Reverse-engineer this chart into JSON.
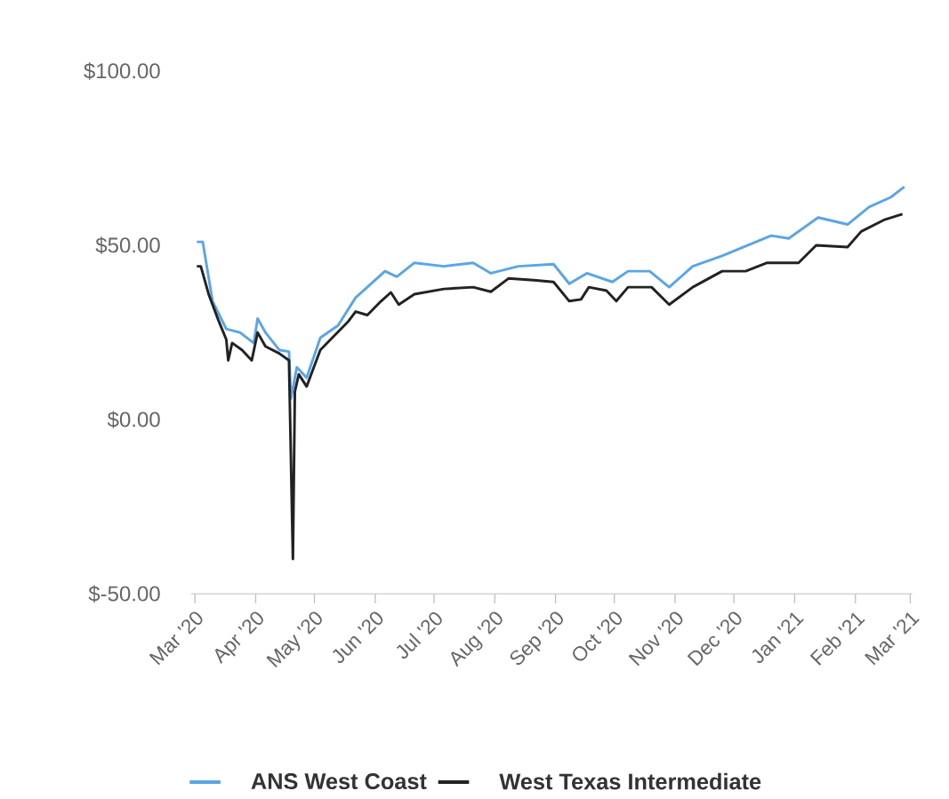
{
  "chart_data": {
    "type": "line",
    "xlim": [
      "2020-02-28",
      "2021-03-02"
    ],
    "ylim": [
      -50,
      100
    ],
    "xticks": [
      {
        "value": "2020-03-01",
        "label": "Mar '20"
      },
      {
        "value": "2020-04-01",
        "label": "Apr '20"
      },
      {
        "value": "2020-05-01",
        "label": "May '20"
      },
      {
        "value": "2020-06-01",
        "label": "Jun '20"
      },
      {
        "value": "2020-07-01",
        "label": "Jul '20"
      },
      {
        "value": "2020-08-01",
        "label": "Aug '20"
      },
      {
        "value": "2020-09-01",
        "label": "Sep '20"
      },
      {
        "value": "2020-10-01",
        "label": "Oct '20"
      },
      {
        "value": "2020-11-01",
        "label": "Nov '20"
      },
      {
        "value": "2020-12-01",
        "label": "Dec '20"
      },
      {
        "value": "2021-01-01",
        "label": "Jan '21"
      },
      {
        "value": "2021-02-01",
        "label": "Feb '21"
      },
      {
        "value": "2021-03-01",
        "label": "Mar '21"
      }
    ],
    "yticks": [
      {
        "value": -50,
        "label": "$-50.00"
      },
      {
        "value": 0,
        "label": "$0.00"
      },
      {
        "value": 50,
        "label": "$50.00"
      },
      {
        "value": 100,
        "label": "$100.00"
      }
    ],
    "legend": "bottom",
    "series": [
      {
        "name": "ANS West Coast",
        "color": "#5aa5e6",
        "x": [
          "2020-03-02",
          "2020-03-05",
          "2020-03-10",
          "2020-03-17",
          "2020-03-24",
          "2020-03-31",
          "2020-04-02",
          "2020-04-06",
          "2020-04-13",
          "2020-04-18",
          "2020-04-19",
          "2020-04-22",
          "2020-04-27",
          "2020-05-04",
          "2020-05-13",
          "2020-05-22",
          "2020-06-06",
          "2020-06-12",
          "2020-06-21",
          "2020-07-06",
          "2020-07-21",
          "2020-07-30",
          "2020-08-13",
          "2020-08-31",
          "2020-09-08",
          "2020-09-17",
          "2020-09-30",
          "2020-10-08",
          "2020-10-19",
          "2020-10-29",
          "2020-11-10",
          "2020-11-25",
          "2020-12-20",
          "2020-12-29",
          "2021-01-13",
          "2021-01-28",
          "2021-02-08",
          "2021-02-19",
          "2021-02-26"
        ],
        "values": [
          51,
          51,
          34,
          26,
          25,
          22,
          29,
          25,
          20,
          19.5,
          6,
          15,
          12,
          23.5,
          27,
          35,
          42.6,
          41,
          45,
          44,
          45,
          42,
          44,
          44.6,
          39,
          42,
          39.5,
          42.6,
          42.6,
          38,
          44,
          47,
          52.8,
          52,
          58,
          56,
          61,
          63.8,
          66.8
        ]
      },
      {
        "name": "West Texas Intermediate",
        "color": "#222222",
        "x": [
          "2020-03-02",
          "2020-03-04",
          "2020-03-08",
          "2020-03-13",
          "2020-03-17",
          "2020-03-18",
          "2020-03-20",
          "2020-03-25",
          "2020-03-30",
          "2020-04-02",
          "2020-04-06",
          "2020-04-13",
          "2020-04-18",
          "2020-04-20",
          "2020-04-21",
          "2020-04-23",
          "2020-04-27",
          "2020-04-30",
          "2020-05-04",
          "2020-05-11",
          "2020-05-18",
          "2020-05-22",
          "2020-05-28",
          "2020-06-04",
          "2020-06-09",
          "2020-06-13",
          "2020-06-21",
          "2020-07-06",
          "2020-07-21",
          "2020-07-30",
          "2020-08-08",
          "2020-08-21",
          "2020-08-31",
          "2020-09-08",
          "2020-09-14",
          "2020-09-18",
          "2020-09-27",
          "2020-10-02",
          "2020-10-08",
          "2020-10-20",
          "2020-10-29",
          "2020-11-10",
          "2020-11-25",
          "2020-12-07",
          "2020-12-18",
          "2021-01-03",
          "2021-01-12",
          "2021-01-28",
          "2021-02-04",
          "2021-02-16",
          "2021-02-25"
        ],
        "values": [
          44,
          44,
          36,
          28.5,
          23,
          17,
          22,
          20,
          17,
          25,
          21,
          19,
          17,
          -40,
          8,
          13,
          9.5,
          14,
          20,
          24,
          28,
          31,
          30,
          34,
          36.5,
          33,
          36,
          37.5,
          38,
          36.7,
          40.5,
          40,
          39.5,
          34,
          34.5,
          38,
          37,
          34,
          38,
          38,
          33,
          38,
          42.6,
          42.6,
          45,
          45,
          50,
          49.5,
          54,
          57.4,
          59
        ]
      }
    ]
  }
}
